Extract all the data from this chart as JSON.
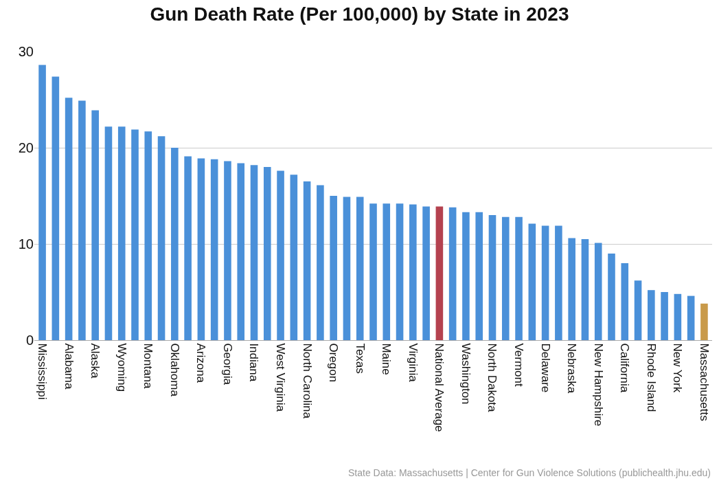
{
  "chart_data": {
    "type": "bar",
    "title": "Gun Death Rate (Per 100,000) by State in 2023",
    "categories": [
      "Mississippi",
      null,
      "Alabama",
      null,
      "Alaska",
      null,
      "Wyoming",
      null,
      "Montana",
      null,
      "Oklahoma",
      null,
      "Arizona",
      null,
      "Georgia",
      null,
      "Indiana",
      null,
      "West Virginia",
      null,
      "North Carolina",
      null,
      "Oregon",
      null,
      "Texas",
      null,
      "Maine",
      null,
      "Virginia",
      null,
      "National Average",
      null,
      "Washington",
      null,
      "North Dakota",
      null,
      "Vermont",
      null,
      "Delaware",
      null,
      "Nebraska",
      null,
      "New Hampshire",
      null,
      "California",
      null,
      "Rhode Island",
      null,
      "New York",
      null,
      "Massachusetts"
    ],
    "values": [
      28.6,
      27.4,
      25.2,
      24.9,
      23.9,
      22.2,
      22.2,
      21.9,
      21.7,
      21.2,
      20.0,
      19.1,
      18.9,
      18.8,
      18.6,
      18.4,
      18.2,
      18.0,
      17.6,
      17.2,
      16.5,
      16.1,
      15.0,
      14.9,
      14.9,
      14.2,
      14.2,
      14.2,
      14.1,
      13.9,
      13.9,
      13.8,
      13.3,
      13.3,
      13.0,
      12.8,
      12.8,
      12.1,
      11.9,
      11.9,
      10.6,
      10.5,
      10.1,
      9.0,
      8.0,
      6.2,
      5.2,
      5.0,
      4.8,
      4.6,
      3.8
    ],
    "colors": [
      "#4a90d9",
      "#4a90d9",
      "#4a90d9",
      "#4a90d9",
      "#4a90d9",
      "#4a90d9",
      "#4a90d9",
      "#4a90d9",
      "#4a90d9",
      "#4a90d9",
      "#4a90d9",
      "#4a90d9",
      "#4a90d9",
      "#4a90d9",
      "#4a90d9",
      "#4a90d9",
      "#4a90d9",
      "#4a90d9",
      "#4a90d9",
      "#4a90d9",
      "#4a90d9",
      "#4a90d9",
      "#4a90d9",
      "#4a90d9",
      "#4a90d9",
      "#4a90d9",
      "#4a90d9",
      "#4a90d9",
      "#4a90d9",
      "#4a90d9",
      "#b5424f",
      "#4a90d9",
      "#4a90d9",
      "#4a90d9",
      "#4a90d9",
      "#4a90d9",
      "#4a90d9",
      "#4a90d9",
      "#4a90d9",
      "#4a90d9",
      "#4a90d9",
      "#4a90d9",
      "#4a90d9",
      "#4a90d9",
      "#4a90d9",
      "#4a90d9",
      "#4a90d9",
      "#4a90d9",
      "#4a90d9",
      "#4a90d9",
      "#c99a4a"
    ],
    "ylim": [
      0,
      30
    ],
    "yticks": [
      0,
      10,
      20,
      30
    ],
    "grid": "y",
    "annotations": [
      "State Data: Massachusetts | Center for Gun Violence Solutions (publichealth.jhu.edu)"
    ]
  }
}
